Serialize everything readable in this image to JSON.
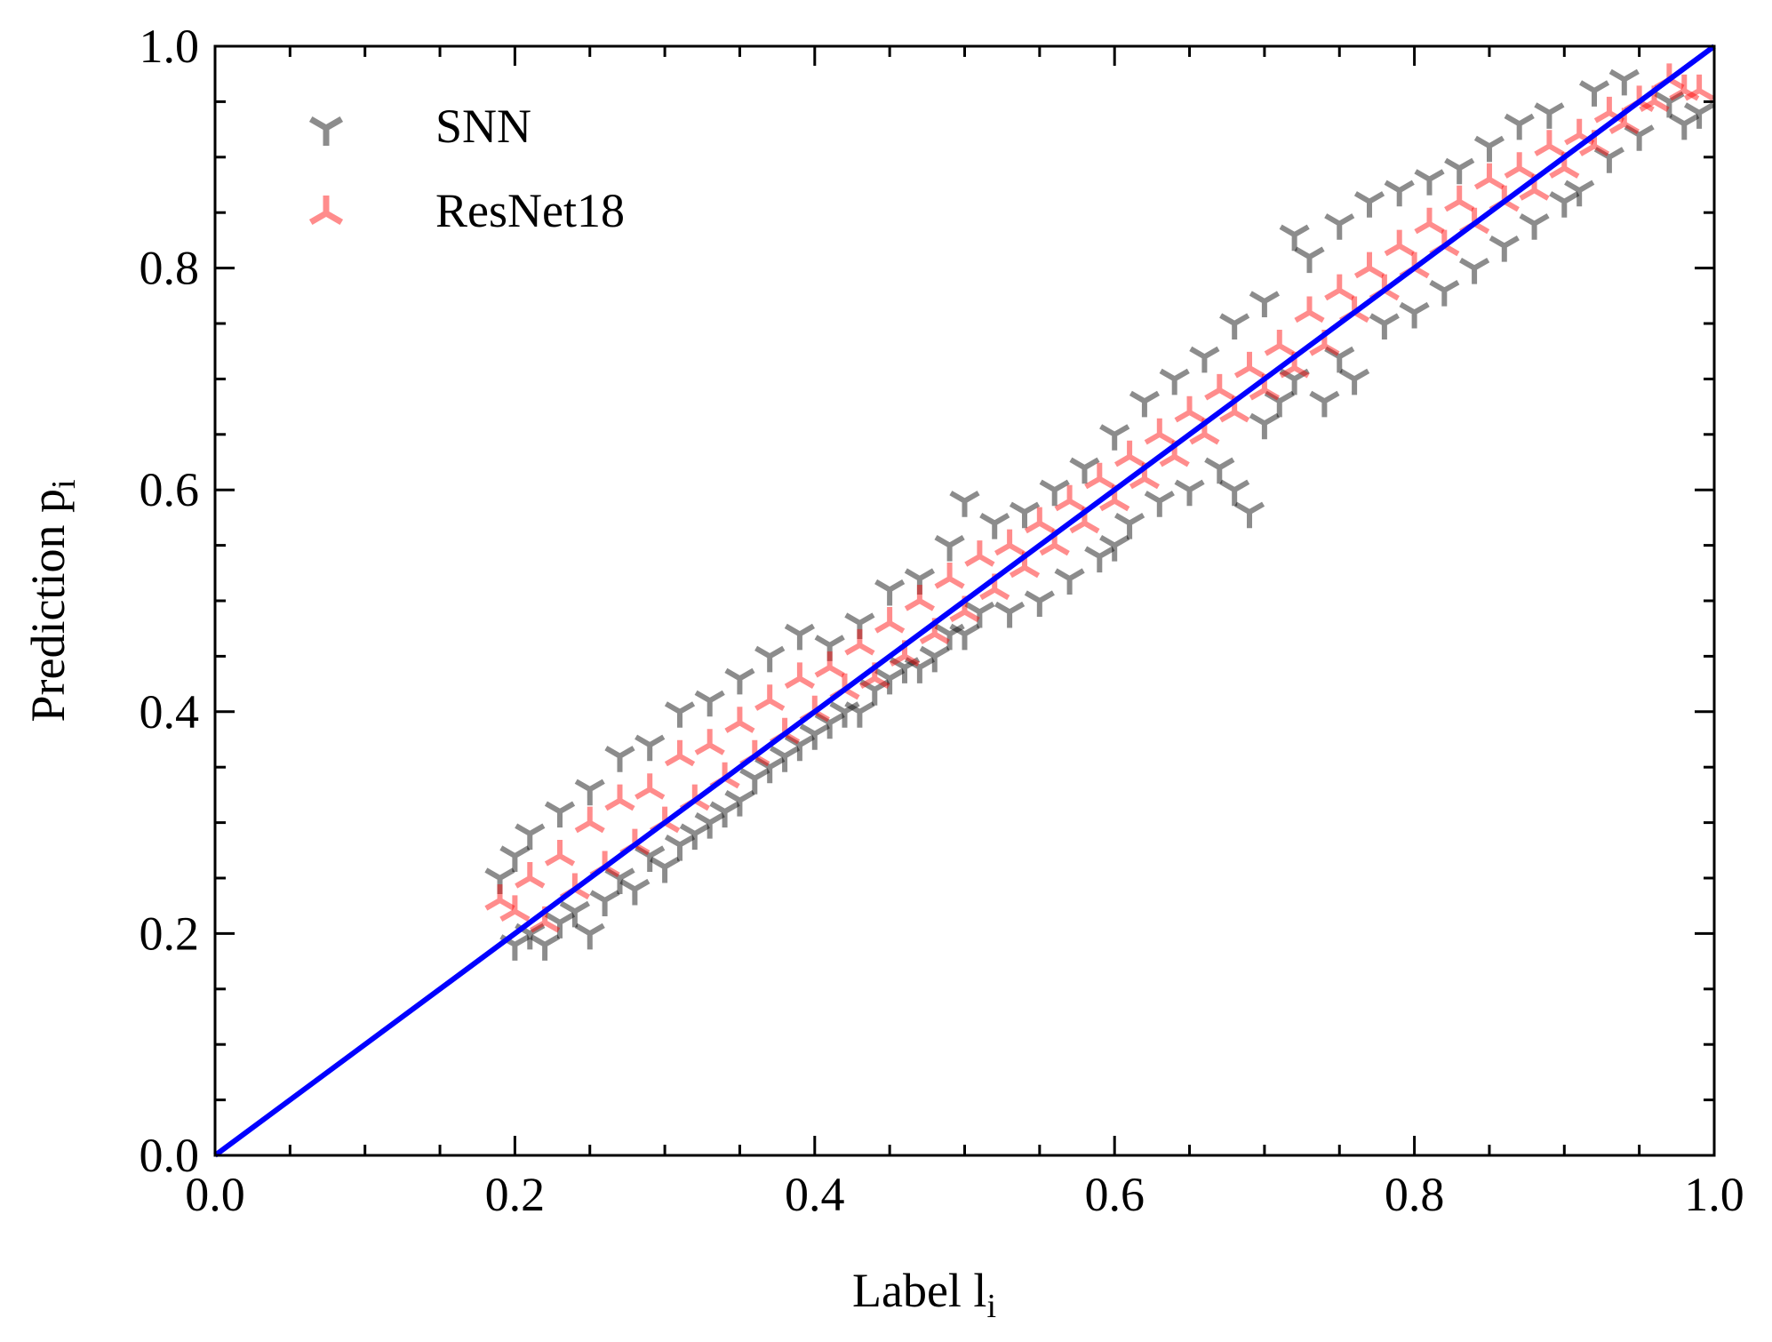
{
  "chart_data": {
    "type": "scatter",
    "xlabel": "Label l",
    "xlabel_sub": "i",
    "ylabel": "Prediction p",
    "ylabel_sub": "i",
    "xlim": [
      0.0,
      1.0
    ],
    "ylim": [
      0.0,
      1.0
    ],
    "xticks": [
      "0.0",
      "0.2",
      "0.4",
      "0.6",
      "0.8",
      "1.0"
    ],
    "yticks": [
      "0.0",
      "0.2",
      "0.4",
      "0.6",
      "0.8",
      "1.0"
    ],
    "grid": false,
    "legend_position": "top-left",
    "reference_line": {
      "x": [
        0.0,
        1.0
      ],
      "y": [
        0.0,
        1.0
      ],
      "color": "#0000ff"
    },
    "series": [
      {
        "name": "SNN",
        "marker": "tri_down",
        "color": "#000000",
        "opacity": 0.45,
        "points": [
          [
            0.19,
            0.25
          ],
          [
            0.2,
            0.19
          ],
          [
            0.2,
            0.27
          ],
          [
            0.21,
            0.2
          ],
          [
            0.21,
            0.29
          ],
          [
            0.22,
            0.19
          ],
          [
            0.23,
            0.21
          ],
          [
            0.23,
            0.31
          ],
          [
            0.24,
            0.22
          ],
          [
            0.25,
            0.2
          ],
          [
            0.25,
            0.33
          ],
          [
            0.26,
            0.23
          ],
          [
            0.27,
            0.36
          ],
          [
            0.27,
            0.25
          ],
          [
            0.28,
            0.24
          ],
          [
            0.29,
            0.37
          ],
          [
            0.29,
            0.27
          ],
          [
            0.3,
            0.26
          ],
          [
            0.31,
            0.4
          ],
          [
            0.31,
            0.28
          ],
          [
            0.32,
            0.29
          ],
          [
            0.33,
            0.41
          ],
          [
            0.33,
            0.3
          ],
          [
            0.34,
            0.31
          ],
          [
            0.35,
            0.43
          ],
          [
            0.35,
            0.32
          ],
          [
            0.36,
            0.34
          ],
          [
            0.37,
            0.45
          ],
          [
            0.37,
            0.35
          ],
          [
            0.38,
            0.36
          ],
          [
            0.39,
            0.47
          ],
          [
            0.39,
            0.37
          ],
          [
            0.4,
            0.38
          ],
          [
            0.41,
            0.46
          ],
          [
            0.41,
            0.39
          ],
          [
            0.42,
            0.4
          ],
          [
            0.43,
            0.48
          ],
          [
            0.43,
            0.4
          ],
          [
            0.44,
            0.42
          ],
          [
            0.45,
            0.51
          ],
          [
            0.45,
            0.43
          ],
          [
            0.46,
            0.44
          ],
          [
            0.47,
            0.52
          ],
          [
            0.47,
            0.44
          ],
          [
            0.48,
            0.45
          ],
          [
            0.49,
            0.55
          ],
          [
            0.49,
            0.47
          ],
          [
            0.5,
            0.59
          ],
          [
            0.5,
            0.47
          ],
          [
            0.51,
            0.49
          ],
          [
            0.52,
            0.57
          ],
          [
            0.53,
            0.49
          ],
          [
            0.54,
            0.58
          ],
          [
            0.55,
            0.5
          ],
          [
            0.56,
            0.6
          ],
          [
            0.57,
            0.52
          ],
          [
            0.58,
            0.62
          ],
          [
            0.59,
            0.54
          ],
          [
            0.6,
            0.65
          ],
          [
            0.6,
            0.55
          ],
          [
            0.61,
            0.57
          ],
          [
            0.62,
            0.68
          ],
          [
            0.63,
            0.59
          ],
          [
            0.64,
            0.7
          ],
          [
            0.65,
            0.6
          ],
          [
            0.66,
            0.72
          ],
          [
            0.67,
            0.62
          ],
          [
            0.68,
            0.75
          ],
          [
            0.68,
            0.6
          ],
          [
            0.69,
            0.58
          ],
          [
            0.7,
            0.77
          ],
          [
            0.7,
            0.66
          ],
          [
            0.71,
            0.68
          ],
          [
            0.72,
            0.83
          ],
          [
            0.72,
            0.7
          ],
          [
            0.73,
            0.81
          ],
          [
            0.74,
            0.68
          ],
          [
            0.75,
            0.84
          ],
          [
            0.75,
            0.72
          ],
          [
            0.76,
            0.7
          ],
          [
            0.77,
            0.86
          ],
          [
            0.78,
            0.75
          ],
          [
            0.79,
            0.87
          ],
          [
            0.8,
            0.76
          ],
          [
            0.81,
            0.88
          ],
          [
            0.82,
            0.78
          ],
          [
            0.83,
            0.89
          ],
          [
            0.84,
            0.8
          ],
          [
            0.85,
            0.91
          ],
          [
            0.86,
            0.82
          ],
          [
            0.87,
            0.93
          ],
          [
            0.88,
            0.84
          ],
          [
            0.89,
            0.94
          ],
          [
            0.9,
            0.86
          ],
          [
            0.91,
            0.87
          ],
          [
            0.92,
            0.96
          ],
          [
            0.93,
            0.9
          ],
          [
            0.94,
            0.97
          ],
          [
            0.95,
            0.92
          ],
          [
            0.97,
            0.95
          ],
          [
            0.98,
            0.93
          ],
          [
            0.99,
            0.94
          ]
        ]
      },
      {
        "name": "ResNet18",
        "marker": "tri_up",
        "color": "#ff0000",
        "opacity": 0.45,
        "points": [
          [
            0.19,
            0.23
          ],
          [
            0.2,
            0.22
          ],
          [
            0.21,
            0.25
          ],
          [
            0.22,
            0.21
          ],
          [
            0.23,
            0.27
          ],
          [
            0.24,
            0.24
          ],
          [
            0.25,
            0.3
          ],
          [
            0.26,
            0.26
          ],
          [
            0.27,
            0.32
          ],
          [
            0.28,
            0.28
          ],
          [
            0.29,
            0.33
          ],
          [
            0.3,
            0.3
          ],
          [
            0.31,
            0.36
          ],
          [
            0.32,
            0.32
          ],
          [
            0.33,
            0.37
          ],
          [
            0.34,
            0.34
          ],
          [
            0.35,
            0.39
          ],
          [
            0.36,
            0.36
          ],
          [
            0.37,
            0.41
          ],
          [
            0.38,
            0.38
          ],
          [
            0.39,
            0.43
          ],
          [
            0.4,
            0.4
          ],
          [
            0.41,
            0.44
          ],
          [
            0.42,
            0.42
          ],
          [
            0.43,
            0.46
          ],
          [
            0.44,
            0.43
          ],
          [
            0.45,
            0.48
          ],
          [
            0.46,
            0.45
          ],
          [
            0.47,
            0.5
          ],
          [
            0.48,
            0.47
          ],
          [
            0.49,
            0.52
          ],
          [
            0.5,
            0.49
          ],
          [
            0.51,
            0.54
          ],
          [
            0.52,
            0.51
          ],
          [
            0.53,
            0.55
          ],
          [
            0.54,
            0.53
          ],
          [
            0.55,
            0.57
          ],
          [
            0.56,
            0.55
          ],
          [
            0.57,
            0.59
          ],
          [
            0.58,
            0.57
          ],
          [
            0.59,
            0.61
          ],
          [
            0.6,
            0.59
          ],
          [
            0.61,
            0.63
          ],
          [
            0.62,
            0.61
          ],
          [
            0.63,
            0.65
          ],
          [
            0.64,
            0.63
          ],
          [
            0.65,
            0.67
          ],
          [
            0.66,
            0.65
          ],
          [
            0.67,
            0.69
          ],
          [
            0.68,
            0.67
          ],
          [
            0.69,
            0.71
          ],
          [
            0.7,
            0.69
          ],
          [
            0.71,
            0.73
          ],
          [
            0.72,
            0.71
          ],
          [
            0.73,
            0.76
          ],
          [
            0.74,
            0.73
          ],
          [
            0.75,
            0.78
          ],
          [
            0.76,
            0.76
          ],
          [
            0.77,
            0.8
          ],
          [
            0.78,
            0.78
          ],
          [
            0.79,
            0.82
          ],
          [
            0.8,
            0.8
          ],
          [
            0.81,
            0.84
          ],
          [
            0.82,
            0.82
          ],
          [
            0.83,
            0.86
          ],
          [
            0.84,
            0.84
          ],
          [
            0.85,
            0.88
          ],
          [
            0.86,
            0.86
          ],
          [
            0.87,
            0.89
          ],
          [
            0.88,
            0.87
          ],
          [
            0.89,
            0.91
          ],
          [
            0.9,
            0.89
          ],
          [
            0.91,
            0.92
          ],
          [
            0.92,
            0.91
          ],
          [
            0.93,
            0.94
          ],
          [
            0.94,
            0.93
          ],
          [
            0.95,
            0.95
          ],
          [
            0.96,
            0.95
          ],
          [
            0.97,
            0.97
          ],
          [
            0.98,
            0.96
          ],
          [
            0.99,
            0.96
          ]
        ]
      }
    ]
  }
}
